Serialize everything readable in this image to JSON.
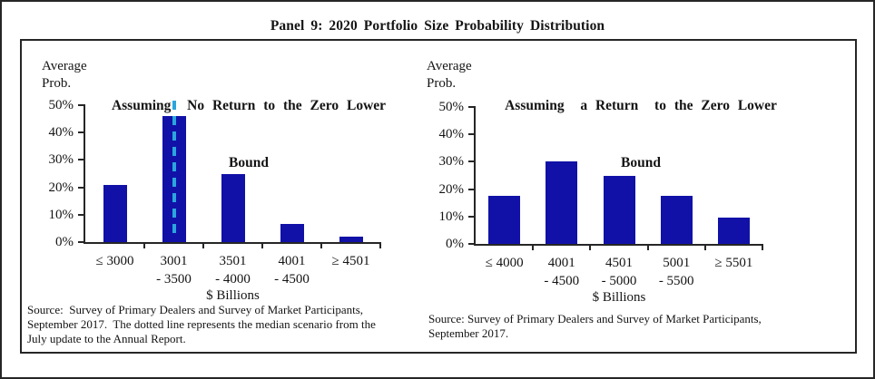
{
  "panel": {
    "title": "Panel 9: 2020 Portfolio Size Probability Distribution"
  },
  "colors": {
    "bar": "#1111A8",
    "median_line": "#2BA6DC",
    "axis": "#262626",
    "background": "#FFFFFF"
  },
  "chart_data": [
    {
      "id": "left",
      "type": "bar",
      "title": "Assuming No Return to the Zero Lower Bound",
      "title_lines": [
        "Assuming  No Return to the Zero Lower",
        "Bound"
      ],
      "ylabel": "Average Prob.",
      "ylabel_lines": [
        "Average",
        "Prob."
      ],
      "xlabel": "$ Billions",
      "categories": [
        [
          "≤ 3000"
        ],
        [
          "3001",
          "- 3500"
        ],
        [
          "3501",
          "- 4000"
        ],
        [
          "4001",
          "- 4500"
        ],
        [
          "≥ 4501"
        ]
      ],
      "values": [
        21,
        46,
        25,
        6.5,
        2
      ],
      "ylim": [
        0,
        50
      ],
      "y_ticks": [
        {
          "value": 0,
          "label": "0%"
        },
        {
          "value": 10,
          "label": "10%"
        },
        {
          "value": 20,
          "label": "20%"
        },
        {
          "value": 30,
          "label": "30%"
        },
        {
          "value": 40,
          "label": "40%"
        },
        {
          "value": 50,
          "label": "50%"
        }
      ],
      "grid": false,
      "bar_width_ratio": 0.4,
      "median_line": {
        "category_index": 1,
        "style": "dashed",
        "color": "#2BA6DC"
      },
      "source_lines": [
        "Source:  Survey of Primary Dealers and Survey of Market Participants,",
        "September 2017.  The dotted line represents the median scenario from the",
        "July update to the Annual Report."
      ]
    },
    {
      "id": "right",
      "type": "bar",
      "title": "Assuming a Return to the Zero Lower Bound",
      "title_lines": [
        "Assuming  a Return  to the Zero Lower",
        "Bound"
      ],
      "ylabel": "Average Prob.",
      "ylabel_lines": [
        "Average",
        "Prob."
      ],
      "xlabel": "$ Billions",
      "categories": [
        [
          "≤ 4000"
        ],
        [
          "4001",
          "- 4500"
        ],
        [
          "4501",
          "- 5000"
        ],
        [
          "5001",
          "- 5500"
        ],
        [
          "≥ 5501"
        ]
      ],
      "values": [
        17.5,
        30,
        25,
        17.5,
        9.5
      ],
      "ylim": [
        0,
        50
      ],
      "y_ticks": [
        {
          "value": 0,
          "label": "0%"
        },
        {
          "value": 10,
          "label": "10%"
        },
        {
          "value": 20,
          "label": "20%"
        },
        {
          "value": 30,
          "label": "30%"
        },
        {
          "value": 40,
          "label": "40%"
        },
        {
          "value": 50,
          "label": "50%"
        }
      ],
      "grid": false,
      "bar_width_ratio": 0.55,
      "median_line": null,
      "source_lines": [
        "Source: Survey of Primary Dealers and Survey of Market Participants,",
        "September 2017."
      ]
    }
  ]
}
